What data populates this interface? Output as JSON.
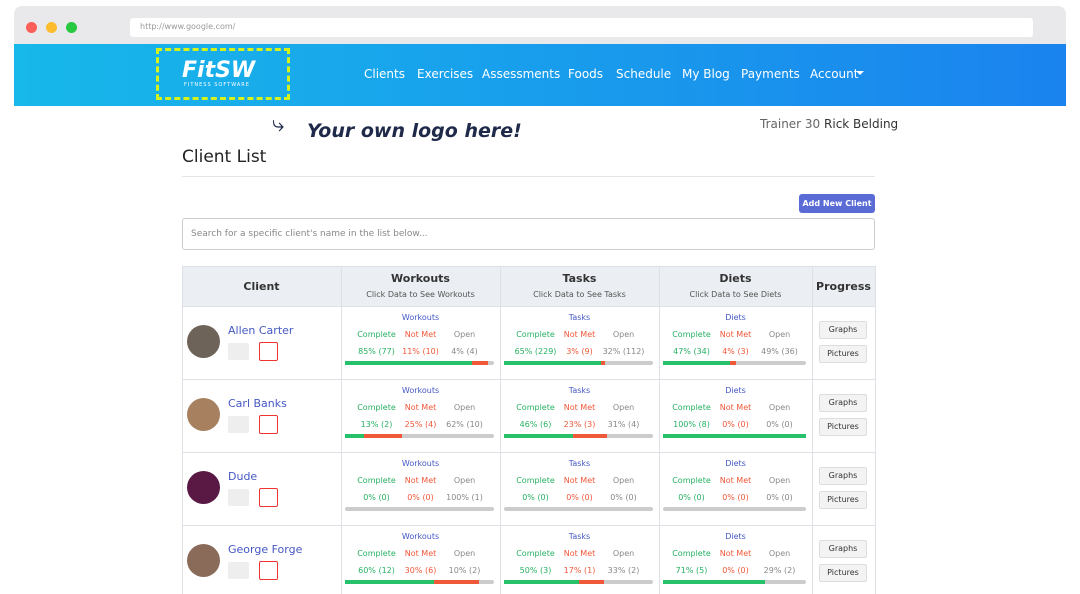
{
  "browser": {
    "url": "http://www.google.com/"
  },
  "nav": {
    "logo": "FitSW",
    "logo_sub": "FITNESS SOFTWARE",
    "links": [
      "Clients",
      "Exercises",
      "Assessments",
      "Foods",
      "Schedule",
      "My Blog",
      "Payments",
      "Account"
    ]
  },
  "annotation": "Your own logo here!",
  "user": {
    "trainer": "Trainer 30",
    "name": "Rick Belding"
  },
  "page_title": "Client List",
  "add_button": "Add New Client",
  "search_placeholder": "Search for a specific client's name in the list below...",
  "table": {
    "client_header": "Client",
    "progress_header": "Progress",
    "groups": [
      {
        "title": "Workouts",
        "sub": "Click Data to See Workouts"
      },
      {
        "title": "Tasks",
        "sub": "Click Data to See Tasks"
      },
      {
        "title": "Diets",
        "sub": "Click Data to See Diets"
      }
    ],
    "status_labels": [
      "Complete",
      "Not Met",
      "Open"
    ],
    "graphs": "Graphs",
    "pictures": "Pictures",
    "rows": [
      {
        "name": "Allen Carter",
        "cells": [
          {
            "complete": {
              "value": 85,
              "label": "85% (77)"
            },
            "not_met": {
              "value": 11,
              "label": "11% (10)"
            },
            "open": {
              "value": 4,
              "label": "4% (4)"
            }
          },
          {
            "complete": {
              "value": 65,
              "label": "65% (229)"
            },
            "not_met": {
              "value": 3,
              "label": "3% (9)"
            },
            "open": {
              "value": 32,
              "label": "32% (112)"
            }
          },
          {
            "complete": {
              "value": 47,
              "label": "47% (34)"
            },
            "not_met": {
              "value": 4,
              "label": "4% (3)"
            },
            "open": {
              "value": 49,
              "label": "49% (36)"
            }
          }
        ]
      },
      {
        "name": "Carl Banks",
        "cells": [
          {
            "complete": {
              "value": 13,
              "label": "13% (2)"
            },
            "not_met": {
              "value": 25,
              "label": "25% (4)"
            },
            "open": {
              "value": 62,
              "label": "62% (10)"
            }
          },
          {
            "complete": {
              "value": 46,
              "label": "46% (6)"
            },
            "not_met": {
              "value": 23,
              "label": "23% (3)"
            },
            "open": {
              "value": 31,
              "label": "31% (4)"
            }
          },
          {
            "complete": {
              "value": 100,
              "label": "100% (8)"
            },
            "not_met": {
              "value": 0,
              "label": "0% (0)"
            },
            "open": {
              "value": 0,
              "label": "0% (0)"
            }
          }
        ]
      },
      {
        "name": "Dude",
        "cells": [
          {
            "complete": {
              "value": 0,
              "label": "0% (0)"
            },
            "not_met": {
              "value": 0,
              "label": "0% (0)"
            },
            "open": {
              "value": 100,
              "label": "100% (1)"
            }
          },
          {
            "complete": {
              "value": 0,
              "label": "0% (0)"
            },
            "not_met": {
              "value": 0,
              "label": "0% (0)"
            },
            "open": {
              "value": 0,
              "label": "0% (0)"
            }
          },
          {
            "complete": {
              "value": 0,
              "label": "0% (0)"
            },
            "not_met": {
              "value": 0,
              "label": "0% (0)"
            },
            "open": {
              "value": 0,
              "label": "0% (0)"
            }
          }
        ]
      },
      {
        "name": "George Forge",
        "cells": [
          {
            "complete": {
              "value": 60,
              "label": "60% (12)"
            },
            "not_met": {
              "value": 30,
              "label": "30% (6)"
            },
            "open": {
              "value": 10,
              "label": "10% (2)"
            }
          },
          {
            "complete": {
              "value": 50,
              "label": "50% (3)"
            },
            "not_met": {
              "value": 17,
              "label": "17% (1)"
            },
            "open": {
              "value": 33,
              "label": "33% (2)"
            }
          },
          {
            "complete": {
              "value": 71,
              "label": "71% (5)"
            },
            "not_met": {
              "value": 0,
              "label": "0% (0)"
            },
            "open": {
              "value": 29,
              "label": "29% (2)"
            }
          }
        ]
      }
    ]
  }
}
